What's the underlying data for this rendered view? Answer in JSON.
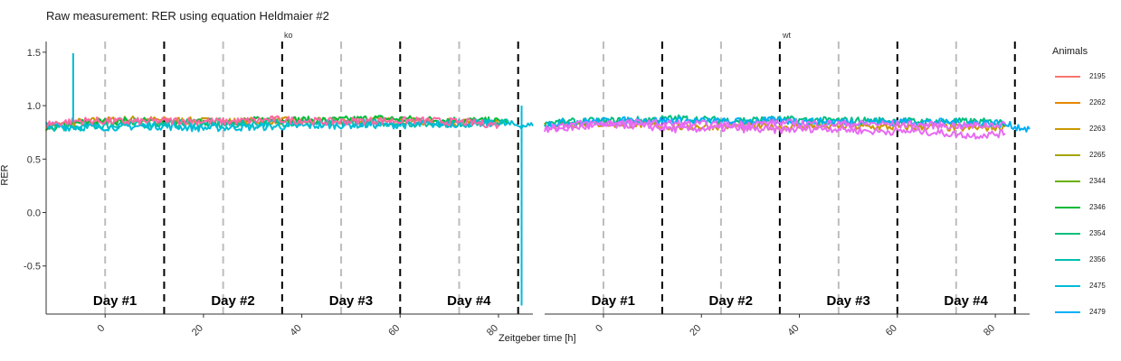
{
  "title": "Raw measurement: RER using equation Heldmaier #2",
  "chart_data": {
    "type": "line",
    "title": "Raw measurement: RER using equation Heldmaier #2",
    "xlabel": "Zeitgeber time [h]",
    "ylabel": "RER",
    "xlim": [
      -12,
      87
    ],
    "ylim": [
      -0.95,
      1.6
    ],
    "x_ticks": [
      0,
      20,
      40,
      60,
      80
    ],
    "y_ticks": [
      -0.5,
      0.0,
      0.5,
      1.0,
      1.5
    ],
    "y_tick_labels": [
      "-0.5",
      "0.0",
      "0.5",
      "1.0",
      "1.5"
    ],
    "legend_title": "Animals",
    "legend_position": "right",
    "grid": false,
    "light_dark_lines": [
      0,
      24,
      48,
      72
    ],
    "day_boundaries": [
      12,
      36,
      60,
      84
    ],
    "day_labels": [
      {
        "x": 2,
        "text": "Day #1"
      },
      {
        "x": 26,
        "text": "Day #2"
      },
      {
        "x": 50,
        "text": "Day #3"
      },
      {
        "x": 74,
        "text": "Day #4"
      }
    ],
    "series_names": [
      "2195",
      "2262",
      "2263",
      "2265",
      "2344",
      "2346",
      "2354",
      "2356",
      "2475",
      "2479"
    ],
    "series_colors": [
      "#f8766d",
      "#e58700",
      "#c99800",
      "#a3a500",
      "#6bb100",
      "#00ba38",
      "#00bf7d",
      "#00c0af",
      "#00bcd8",
      "#00b0f6"
    ],
    "extra_colors": [
      "#e76bf3",
      "#ff67a4"
    ],
    "facets": [
      {
        "label": "ko",
        "series": [
          {
            "color_index": 2,
            "points": [
              [
                -12,
                0.8
              ],
              [
                -5,
                0.85
              ],
              [
                5,
                0.87
              ],
              [
                15,
                0.86
              ],
              [
                25,
                0.85
              ],
              [
                35,
                0.86
              ],
              [
                45,
                0.85
              ],
              [
                55,
                0.86
              ],
              [
                65,
                0.85
              ],
              [
                75,
                0.84
              ],
              [
                80,
                0.83
              ]
            ]
          },
          {
            "color_index": 5,
            "points": [
              [
                -12,
                0.78
              ],
              [
                -5,
                0.84
              ],
              [
                5,
                0.86
              ],
              [
                15,
                0.84
              ],
              [
                25,
                0.85
              ],
              [
                35,
                0.87
              ],
              [
                45,
                0.86
              ],
              [
                55,
                0.88
              ],
              [
                65,
                0.87
              ],
              [
                75,
                0.86
              ],
              [
                82,
                0.85
              ]
            ]
          },
          {
            "color_index": 7,
            "points": [
              [
                -12,
                0.8
              ],
              [
                -5,
                0.8
              ],
              [
                5,
                0.82
              ],
              [
                15,
                0.83
              ],
              [
                25,
                0.82
              ],
              [
                35,
                0.84
              ],
              [
                45,
                0.83
              ],
              [
                55,
                0.84
              ],
              [
                65,
                0.83
              ],
              [
                75,
                0.84
              ],
              [
                82,
                0.85
              ]
            ]
          },
          {
            "color_index": 8,
            "points": [
              [
                -12,
                0.82
              ],
              [
                -8,
                0.8
              ],
              [
                0,
                0.8
              ],
              [
                10,
                0.81
              ],
              [
                20,
                0.79
              ],
              [
                30,
                0.8
              ],
              [
                40,
                0.81
              ],
              [
                50,
                0.82
              ],
              [
                60,
                0.82
              ],
              [
                70,
                0.83
              ],
              [
                80,
                0.83
              ],
              [
                87,
                0.81
              ]
            ]
          },
          {
            "color_key": "pink",
            "points": [
              [
                -12,
                0.83
              ],
              [
                -5,
                0.86
              ],
              [
                5,
                0.85
              ],
              [
                15,
                0.86
              ],
              [
                25,
                0.85
              ],
              [
                35,
                0.87
              ],
              [
                45,
                0.85
              ],
              [
                55,
                0.86
              ],
              [
                65,
                0.86
              ],
              [
                75,
                0.84
              ],
              [
                80,
                0.82
              ]
            ]
          }
        ],
        "spikes": [
          {
            "color_index": 8,
            "x": -6.5,
            "low": 0.85,
            "high": 1.49
          },
          {
            "color_index": 8,
            "x": 84.7,
            "low": -0.87,
            "high": 1.0
          }
        ]
      },
      {
        "label": "wt",
        "series": [
          {
            "color_index": 2,
            "points": [
              [
                -12,
                0.82
              ],
              [
                -5,
                0.83
              ],
              [
                5,
                0.83
              ],
              [
                15,
                0.8
              ],
              [
                25,
                0.81
              ],
              [
                35,
                0.8
              ],
              [
                45,
                0.81
              ],
              [
                55,
                0.8
              ],
              [
                65,
                0.8
              ],
              [
                75,
                0.79
              ],
              [
                82,
                0.8
              ]
            ]
          },
          {
            "color_index": 6,
            "points": [
              [
                -12,
                0.84
              ],
              [
                -5,
                0.85
              ],
              [
                5,
                0.86
              ],
              [
                15,
                0.88
              ],
              [
                25,
                0.86
              ],
              [
                35,
                0.87
              ],
              [
                45,
                0.86
              ],
              [
                55,
                0.86
              ],
              [
                65,
                0.85
              ],
              [
                75,
                0.85
              ],
              [
                82,
                0.84
              ]
            ]
          },
          {
            "color_index": 9,
            "points": [
              [
                -12,
                0.83
              ],
              [
                -5,
                0.85
              ],
              [
                5,
                0.86
              ],
              [
                15,
                0.86
              ],
              [
                25,
                0.85
              ],
              [
                35,
                0.86
              ],
              [
                45,
                0.85
              ],
              [
                55,
                0.85
              ],
              [
                65,
                0.85
              ],
              [
                75,
                0.84
              ],
              [
                80,
                0.84
              ],
              [
                87,
                0.78
              ]
            ]
          },
          {
            "color_key": "magenta",
            "points": [
              [
                -12,
                0.77
              ],
              [
                -5,
                0.8
              ],
              [
                5,
                0.82
              ],
              [
                15,
                0.78
              ],
              [
                25,
                0.79
              ],
              [
                35,
                0.77
              ],
              [
                45,
                0.79
              ],
              [
                55,
                0.76
              ],
              [
                65,
                0.76
              ],
              [
                75,
                0.72
              ],
              [
                82,
                0.74
              ]
            ]
          },
          {
            "color_key": "magenta",
            "points": [
              [
                -12,
                0.8
              ],
              [
                -5,
                0.83
              ],
              [
                5,
                0.84
              ],
              [
                15,
                0.83
              ],
              [
                25,
                0.82
              ],
              [
                35,
                0.84
              ],
              [
                45,
                0.83
              ],
              [
                55,
                0.83
              ],
              [
                65,
                0.82
              ],
              [
                75,
                0.81
              ],
              [
                82,
                0.83
              ]
            ]
          }
        ],
        "spikes": []
      }
    ]
  }
}
